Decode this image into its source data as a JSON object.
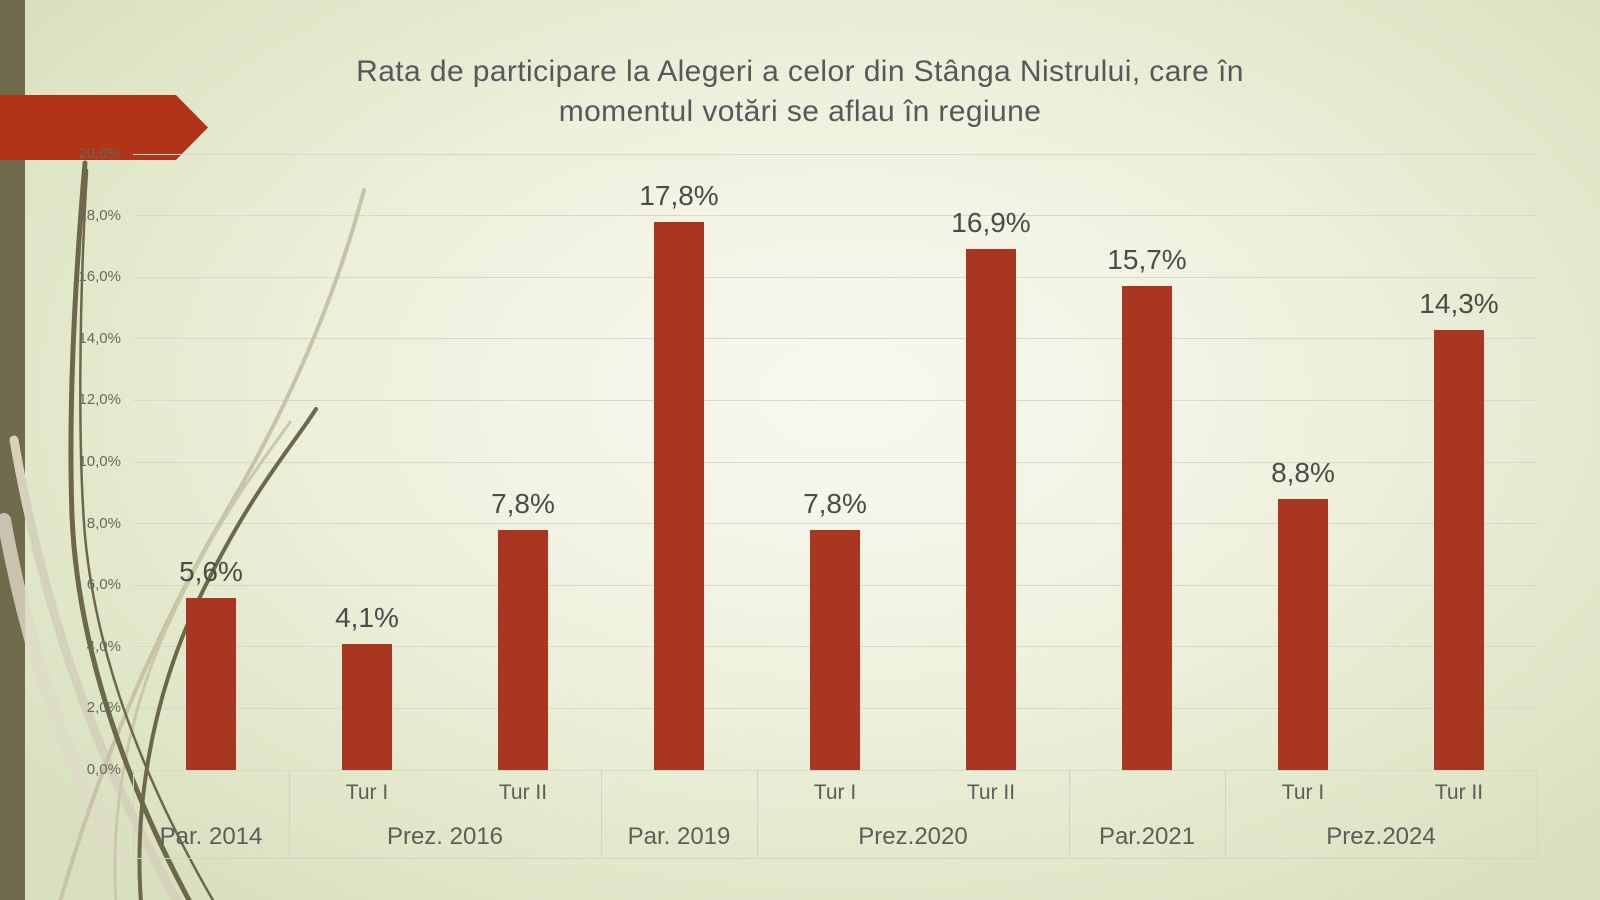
{
  "title": {
    "line1": "Rata de participare la Alegeri a celor din Stânga Nistrului, care în",
    "line2": "momentul votări se aflau în regiune"
  },
  "colors": {
    "bar": "#a93620",
    "accent_arrow": "#b23418",
    "left_strip": "#6f6b4c",
    "title_text": "#58585a",
    "axis_text": "#5e5e58",
    "gridline": "#d8dac9"
  },
  "chart_data": {
    "type": "bar",
    "title": "Rata de participare la Alegeri a celor din Stânga Nistrului, care în momentul votări se aflau în regiune",
    "xlabel": "",
    "ylabel": "",
    "grid": true,
    "legend": null,
    "bar_color": "#a93620",
    "ylim": [
      0,
      20
    ],
    "y_axis": {
      "min": 0,
      "max": 20,
      "step": 2,
      "tick_labels": [
        "0,0%",
        "2,0%",
        "4,0%",
        "6,0%",
        "8,0%",
        "10,0%",
        "12,0%",
        "14,0%",
        "16,0%",
        "18,0%",
        "20,0%"
      ]
    },
    "categories": [
      "Par. 2014",
      "Prez. 2016 Tur I",
      "Prez. 2016 Tur II",
      "Par. 2019",
      "Prez.2020 Tur I",
      "Prez.2020 Tur II",
      "Par.2021",
      "Prez.2024 Tur I",
      "Prez.2024 Tur II"
    ],
    "values": [
      5.6,
      4.1,
      7.8,
      17.8,
      7.8,
      16.9,
      15.7,
      8.8,
      14.3
    ],
    "groups": [
      {
        "label": "Par. 2014",
        "bars": [
          {
            "sub": "",
            "value": 5.6,
            "label": "5,6%"
          }
        ]
      },
      {
        "label": "Prez. 2016",
        "bars": [
          {
            "sub": "Tur I",
            "value": 4.1,
            "label": "4,1%"
          },
          {
            "sub": "Tur II",
            "value": 7.8,
            "label": "7,8%"
          }
        ]
      },
      {
        "label": "Par. 2019",
        "bars": [
          {
            "sub": "",
            "value": 17.8,
            "label": "17,8%"
          }
        ]
      },
      {
        "label": "Prez.2020",
        "bars": [
          {
            "sub": "Tur I",
            "value": 7.8,
            "label": "7,8%"
          },
          {
            "sub": "Tur II",
            "value": 16.9,
            "label": "16,9%"
          }
        ]
      },
      {
        "label": "Par.2021",
        "bars": [
          {
            "sub": "",
            "value": 15.7,
            "label": "15,7%"
          }
        ]
      },
      {
        "label": "Prez.2024",
        "bars": [
          {
            "sub": "Tur I",
            "value": 8.8,
            "label": "8,8%"
          },
          {
            "sub": "Tur II",
            "value": 14.3,
            "label": "14,3%"
          }
        ]
      }
    ]
  }
}
